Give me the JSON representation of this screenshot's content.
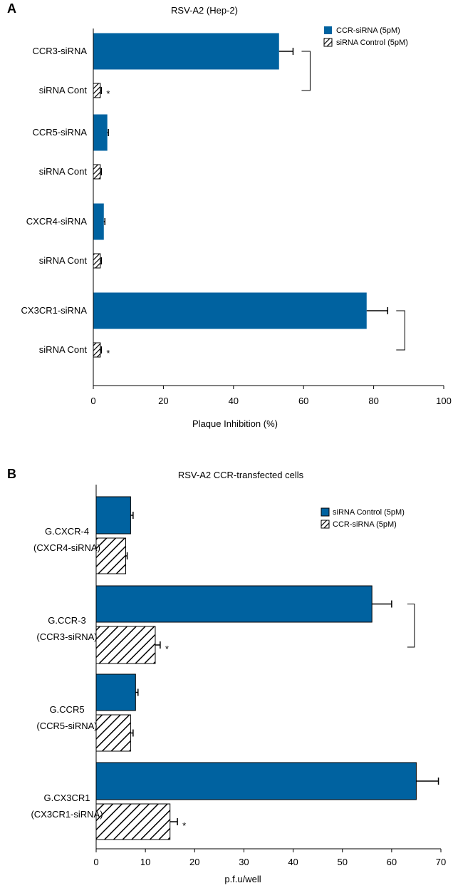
{
  "chart_data": [
    {
      "panel": "A",
      "type": "bar",
      "orientation": "horizontal",
      "title": "RSV-A2 (Hep-2)",
      "xlabel": "Plaque Inhibition (%)",
      "ylabel": "",
      "xlim": [
        0,
        100
      ],
      "ticks": [
        "0",
        "20",
        "40",
        "60",
        "80",
        "100"
      ],
      "tick_values": [
        0,
        20,
        40,
        60,
        80,
        100
      ],
      "legend": {
        "position": "top-right",
        "entries": [
          {
            "label": "CCR-siRNA (5pM)",
            "style": "solid",
            "color": "#0062A0"
          },
          {
            "label": "siRNA Control (5pM)",
            "style": "hatched",
            "color": "#000000"
          }
        ]
      },
      "bars": [
        {
          "label": "CCR3-siRNA",
          "value": 53,
          "error": 4,
          "style": "solid"
        },
        {
          "label": "siRNA Cont",
          "value": 2,
          "error": 0.3,
          "style": "hatched",
          "star": "*"
        },
        {
          "label": "CCR5-siRNA",
          "value": 4,
          "error": 0.3,
          "style": "solid"
        },
        {
          "label": "siRNA Cont",
          "value": 2,
          "error": 0.3,
          "style": "hatched"
        },
        {
          "label": "CXCR4-siRNA",
          "value": 3,
          "error": 0.3,
          "style": "solid"
        },
        {
          "label": "siRNA Cont",
          "value": 2,
          "error": 0.3,
          "style": "hatched"
        },
        {
          "label": "CX3CR1-siRNA",
          "value": 78,
          "error": 6,
          "style": "solid"
        },
        {
          "label": "siRNA Cont",
          "value": 2,
          "error": 0.3,
          "style": "hatched",
          "star": "*"
        }
      ],
      "brackets": [
        [
          0,
          1
        ],
        [
          6,
          7
        ]
      ]
    },
    {
      "panel": "B",
      "type": "bar",
      "orientation": "horizontal",
      "title": "RSV-A2 CCR-transfected cells",
      "xlabel": "p.f.u/well",
      "ylabel": "",
      "xlim": [
        0,
        70
      ],
      "ticks": [
        "0",
        "10",
        "20",
        "30",
        "40",
        "50",
        "60",
        "70"
      ],
      "tick_values": [
        0,
        10,
        20,
        30,
        40,
        50,
        60,
        70
      ],
      "legend": {
        "position": "top-right",
        "entries": [
          {
            "label": "siRNA Control (5pM)",
            "style": "solid",
            "color": "#0062A0"
          },
          {
            "label": "CCR-siRNA (5pM)",
            "style": "hatched",
            "color": "#000000"
          }
        ]
      },
      "groups": [
        {
          "label_lines": [
            "G.CXCR-4",
            "(CXCR4-siRNA)"
          ],
          "solid": 7,
          "solid_error": 0.5,
          "hatched": 6,
          "hatched_error": 0.3
        },
        {
          "label_lines": [
            "G.CCR-3",
            "(CCR3-siRNA)"
          ],
          "solid": 56,
          "solid_error": 4,
          "hatched": 12,
          "hatched_error": 1,
          "star": "*",
          "bracket": true
        },
        {
          "label_lines": [
            "G.CCR5",
            "(CCR5-siRNA)"
          ],
          "solid": 8,
          "solid_error": 0.5,
          "hatched": 7,
          "hatched_error": 0.5
        },
        {
          "label_lines": [
            "G.CX3CR1",
            "(CX3CR1-siRNA)"
          ],
          "solid": 65,
          "solid_error": 4.5,
          "hatched": 15,
          "hatched_error": 1.5,
          "star": "*",
          "bracket": true
        }
      ]
    }
  ],
  "colors": {
    "bar": "#0062A0",
    "axis": "#000000"
  }
}
